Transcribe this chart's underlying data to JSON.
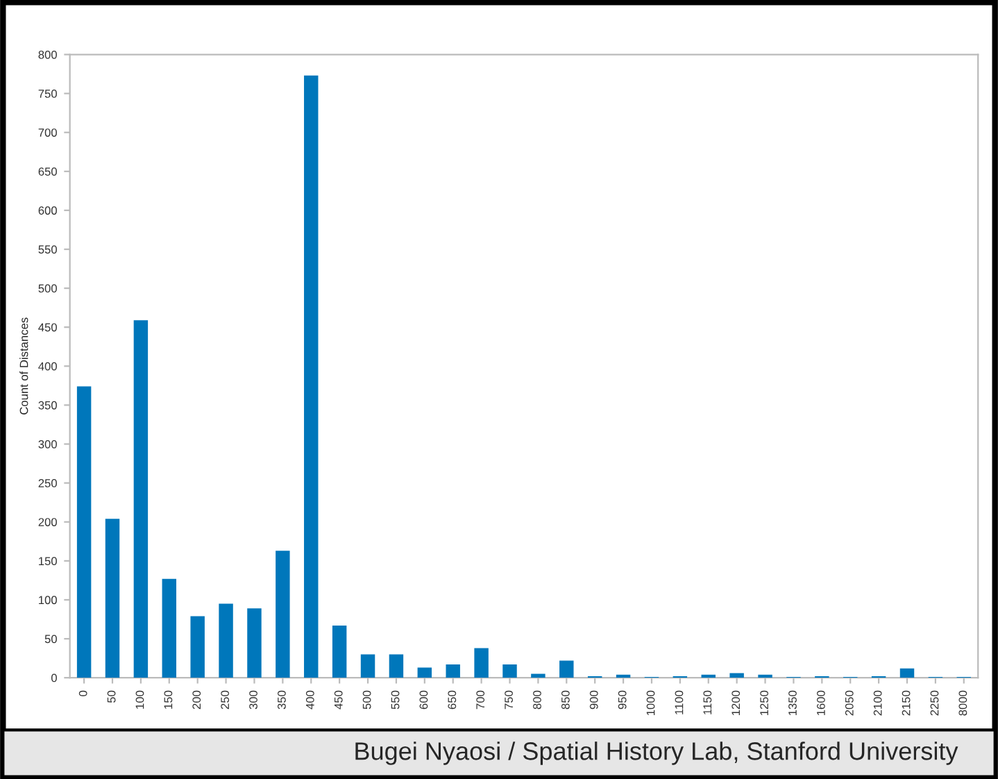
{
  "chart_data": {
    "type": "bar",
    "ylabel": "Count of Distances",
    "categories": [
      "0",
      "50",
      "100",
      "150",
      "200",
      "250",
      "300",
      "350",
      "400",
      "450",
      "500",
      "550",
      "600",
      "650",
      "700",
      "750",
      "800",
      "850",
      "900",
      "950",
      "1000",
      "1100",
      "1150",
      "1200",
      "1250",
      "1350",
      "1600",
      "2050",
      "2100",
      "2150",
      "2250",
      "8000"
    ],
    "values": [
      374,
      204,
      459,
      127,
      79,
      95,
      89,
      163,
      773,
      67,
      30,
      30,
      13,
      17,
      38,
      17,
      5,
      22,
      2,
      4,
      1,
      2,
      4,
      6,
      4,
      1,
      2,
      1,
      2,
      12,
      1,
      1
    ],
    "color": "#0077bb",
    "ylim": [
      0,
      800
    ],
    "yticks": [
      0,
      50,
      100,
      150,
      200,
      250,
      300,
      350,
      400,
      450,
      500,
      550,
      600,
      650,
      700,
      750,
      800
    ],
    "grid": false,
    "annotations": [
      "Bugei Nyaosi / Spatial History Lab, Stanford University"
    ]
  }
}
